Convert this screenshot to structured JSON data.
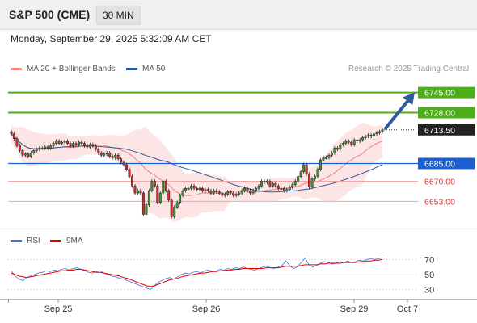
{
  "header": {
    "title": "S&P 500 (CME)",
    "timeframe": "30 MIN",
    "datetime": "Monday, September 29, 2025 5:32:09 AM CET"
  },
  "legend": {
    "bollinger": {
      "label": "MA 20 + Bollinger Bands",
      "color": "#f08080"
    },
    "ma50": {
      "label": "MA 50",
      "color": "#2e5a9c"
    },
    "credit": "Research © 2025 Trading Central",
    "rsi": {
      "label": "RSI",
      "color": "#4a74d0"
    },
    "rsi_ma": {
      "label": "9MA",
      "color": "#e00000"
    }
  },
  "chart_data": {
    "type": "candlestick",
    "ylim": [
      6630,
      6755
    ],
    "x_labels": [
      "Sep 25",
      "Sep 26",
      "Sep 29",
      "Oct 7"
    ],
    "levels": [
      {
        "value": 6745.0,
        "label": "6745.00",
        "kind": "resistance",
        "color": "#4caf1a"
      },
      {
        "value": 6728.0,
        "label": "6728.00",
        "kind": "resistance",
        "color": "#4caf1a"
      },
      {
        "value": 6713.5,
        "label": "6713.50",
        "kind": "last",
        "color": "#222222"
      },
      {
        "value": 6685.0,
        "label": "6685.00",
        "kind": "pivot",
        "color": "#1a5fd0"
      },
      {
        "value": 6670.0,
        "label": "6670.00",
        "kind": "support",
        "color": "#e03030"
      },
      {
        "value": 6653.0,
        "label": "6653.00",
        "kind": "support",
        "color": "#e03030"
      }
    ],
    "candles": [
      6710,
      6706,
      6700,
      6696,
      6692,
      6693,
      6691,
      6694,
      6696,
      6697,
      6698,
      6698,
      6699,
      6698,
      6700,
      6702,
      6704,
      6702,
      6703,
      6704,
      6702,
      6700,
      6702,
      6701,
      6703,
      6702,
      6700,
      6699,
      6701,
      6700,
      6697,
      6694,
      6692,
      6693,
      6694,
      6691,
      6690,
      6692,
      6689,
      6686,
      6684,
      6680,
      6674,
      6666,
      6660,
      6662,
      6660,
      6642,
      6650,
      6662,
      6670,
      6666,
      6652,
      6660,
      6670,
      6662,
      6654,
      6640,
      6648,
      6652,
      6658,
      6662,
      6664,
      6664,
      6666,
      6664,
      6663,
      6664,
      6662,
      6663,
      6662,
      6660,
      6662,
      6661,
      6660,
      6658,
      6659,
      6661,
      6660,
      6658,
      6659,
      6660,
      6662,
      6664,
      6662,
      6660,
      6662,
      6664,
      6666,
      6670,
      6669,
      6670,
      6666,
      6668,
      6666,
      6664,
      6664,
      6662,
      6663,
      6665,
      6667,
      6670,
      6674,
      6678,
      6684,
      6676,
      6665,
      6672,
      6674,
      6680,
      6688,
      6690,
      6690,
      6692,
      6694,
      6698,
      6697,
      6701,
      6702,
      6704,
      6703,
      6701,
      6705,
      6704,
      6705,
      6707,
      6708,
      6709,
      6708,
      6710,
      6711,
      6712,
      6713.5
    ],
    "rsi_ylim": [
      20,
      80
    ],
    "rsi_ticks": [
      70,
      50,
      30
    ],
    "rsi": [
      55,
      48,
      44,
      42,
      46,
      48,
      50,
      52,
      53,
      55,
      54,
      56,
      55,
      57,
      58,
      56,
      58,
      59,
      57,
      55,
      53,
      52,
      54,
      55,
      52,
      50,
      48,
      47,
      45,
      44,
      42,
      40,
      38,
      36,
      34,
      32,
      30,
      35,
      40,
      42,
      45,
      46,
      44,
      47,
      50,
      52,
      51,
      53,
      54,
      52,
      55,
      56,
      54,
      55,
      57,
      56,
      58,
      57,
      59,
      58,
      60,
      58,
      57,
      56,
      58,
      60,
      61,
      59,
      58,
      60,
      62,
      68,
      62,
      58,
      60,
      66,
      72,
      63,
      60,
      62,
      65,
      67,
      66,
      64,
      65,
      67,
      66,
      68,
      66,
      67,
      69,
      68,
      70,
      71,
      70,
      71,
      72
    ],
    "rsi_ma": [
      52,
      50,
      48,
      47,
      46,
      47,
      48,
      49,
      50,
      51,
      52,
      53,
      54,
      55,
      55,
      56,
      56,
      57,
      57,
      56,
      55,
      54,
      53,
      53,
      52,
      51,
      50,
      49,
      48,
      46,
      45,
      43,
      41,
      39,
      37,
      35,
      34,
      35,
      37,
      39,
      41,
      43,
      44,
      45,
      47,
      48,
      49,
      50,
      51,
      52,
      52,
      53,
      54,
      54,
      55,
      55,
      56,
      56,
      57,
      57,
      58,
      58,
      58,
      58,
      58,
      58,
      59,
      59,
      59,
      59,
      60,
      61,
      61,
      61,
      61,
      62,
      63,
      63,
      63,
      63,
      64,
      64,
      65,
      65,
      65,
      65,
      66,
      66,
      66,
      66,
      67,
      67,
      68,
      68,
      69,
      69,
      70
    ]
  }
}
